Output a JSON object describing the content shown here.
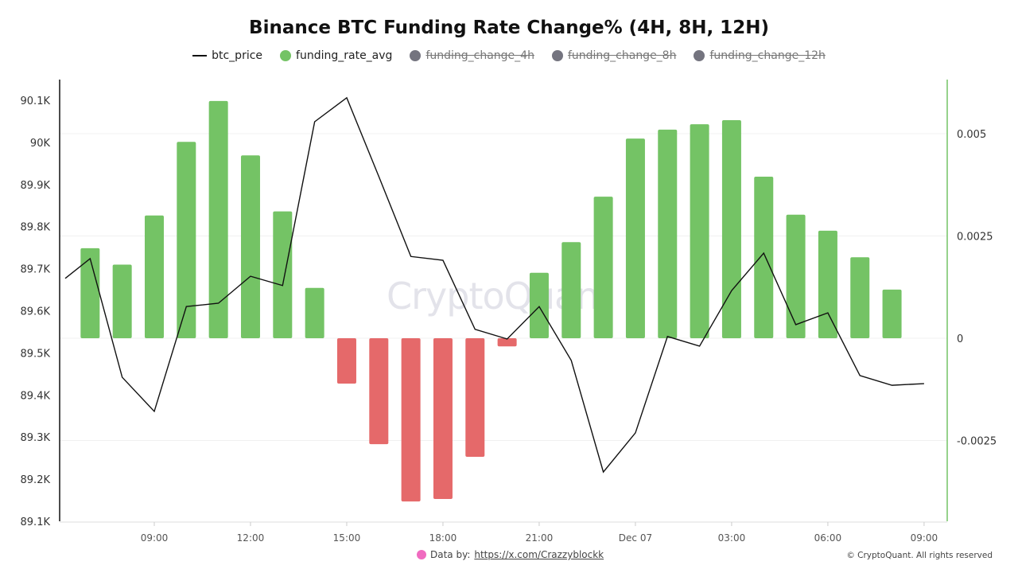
{
  "chart_data": {
    "type": "bar+line",
    "title": "Binance BTC Funding Rate Change% (4H, 8H, 12H)",
    "legend": [
      {
        "name": "btc_price",
        "kind": "line",
        "color": "#111111",
        "hidden": false
      },
      {
        "name": "funding_rate_avg",
        "kind": "bar",
        "color": "#74c365",
        "hidden": false
      },
      {
        "name": "funding_change_4h",
        "kind": "dot",
        "color": "#74747f",
        "hidden": true
      },
      {
        "name": "funding_change_8h",
        "kind": "dot",
        "color": "#74747f",
        "hidden": true
      },
      {
        "name": "funding_change_12h",
        "kind": "dot",
        "color": "#74747f",
        "hidden": true
      }
    ],
    "legend_position": "top",
    "x_start": "Dec 06 06:00",
    "x_end": "Dec 07 09:00",
    "x_ticks": [
      "09:00",
      "12:00",
      "15:00",
      "18:00",
      "21:00",
      "Dec 07",
      "03:00",
      "06:00",
      "09:00"
    ],
    "left_axis": {
      "ticks": [
        "89.1K",
        "89.2K",
        "89.3K",
        "89.4K",
        "89.5K",
        "89.6K",
        "89.7K",
        "89.8K",
        "89.9K",
        "90K",
        "90.1K"
      ],
      "ylim": [
        89100,
        90100
      ]
    },
    "right_axis": {
      "ticks": [
        "-0.0025",
        "0",
        "0.0025",
        "0.005"
      ],
      "tick_values": [
        -0.0025,
        0,
        0.0025,
        0.005
      ],
      "ylim": [
        -0.0045,
        0.0063
      ]
    },
    "positive_color": "#74c365",
    "negative_color": "#e5696a",
    "btc_price": [
      89677,
      89724,
      89442,
      89361,
      89610,
      89618,
      89682,
      89660,
      90049,
      90106,
      89919,
      89729,
      89720,
      89556,
      89533,
      89610,
      89482,
      89217,
      89310,
      89539,
      89516,
      89648,
      89737,
      89567,
      89595,
      89446,
      89423,
      89427
    ],
    "funding_rate_avg": [
      0.0022,
      0.0018,
      0.003,
      0.0048,
      0.0058,
      0.00447,
      0.0031,
      0.00123,
      -0.00111,
      -0.00259,
      -0.00399,
      -0.00393,
      -0.0029,
      -0.0002,
      0.0016,
      0.00235,
      0.00346,
      0.00488,
      0.0051,
      0.00523,
      0.00533,
      0.00395,
      0.00302,
      0.00263,
      0.00198,
      0.00119
    ]
  },
  "watermark": "CryptoQuant",
  "footer": {
    "data_by_label": "Data by:",
    "data_by_link": "https://x.com/Crazzyblockk",
    "copyright": "© CryptoQuant. All rights reserved"
  }
}
